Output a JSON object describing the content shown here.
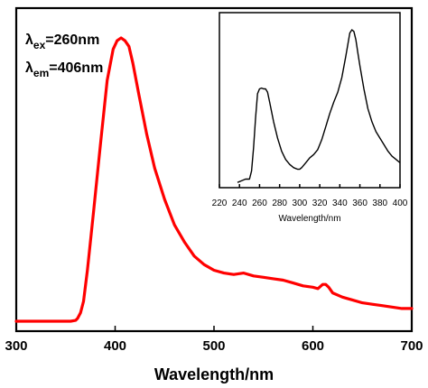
{
  "chart_data": [
    {
      "type": "line",
      "xlabel": "Wavelength/nm",
      "ylabel": "",
      "xlim": [
        300,
        700
      ],
      "xticks": [
        "300",
        "400",
        "500",
        "600",
        "700"
      ],
      "y_ticks_shown": false,
      "line_color": "#ff0000",
      "annotations": [
        {
          "symbol": "λ",
          "sub": "ex",
          "text": "=260nm"
        },
        {
          "symbol": "λ",
          "sub": "em",
          "text": "=406nm"
        }
      ],
      "series": [
        {
          "x": [
            300,
            320,
            340,
            355,
            360,
            362,
            365,
            368,
            372,
            378,
            385,
            392,
            398,
            402,
            406,
            410,
            414,
            418,
            424,
            432,
            440,
            450,
            460,
            470,
            480,
            490,
            500,
            510,
            520,
            530,
            540,
            550,
            560,
            570,
            580,
            590,
            600,
            605,
            610,
            613,
            616,
            620,
            630,
            640,
            650,
            660,
            670,
            680,
            690,
            700
          ],
          "y": [
            0.0,
            0.0,
            0.0,
            0.0,
            0.003,
            0.01,
            0.03,
            0.07,
            0.18,
            0.38,
            0.62,
            0.85,
            0.96,
            0.99,
            1.0,
            0.99,
            0.97,
            0.91,
            0.8,
            0.66,
            0.54,
            0.43,
            0.34,
            0.28,
            0.23,
            0.2,
            0.18,
            0.17,
            0.165,
            0.17,
            0.16,
            0.155,
            0.15,
            0.145,
            0.135,
            0.125,
            0.12,
            0.115,
            0.13,
            0.13,
            0.12,
            0.1,
            0.085,
            0.075,
            0.065,
            0.06,
            0.055,
            0.05,
            0.045,
            0.045
          ]
        }
      ]
    },
    {
      "type": "line",
      "xlabel": "Wavelength/nm",
      "ylabel": "",
      "xlim": [
        220,
        400
      ],
      "xticks": [
        "220",
        "240",
        "260",
        "280",
        "300",
        "320",
        "340",
        "360",
        "380",
        "400"
      ],
      "y_ticks_shown": false,
      "line_color": "#000000",
      "series": [
        {
          "x": [
            238,
            242,
            246,
            250,
            252,
            254,
            256,
            258,
            260,
            262,
            264,
            266,
            268,
            270,
            274,
            278,
            282,
            286,
            290,
            294,
            298,
            300,
            302,
            306,
            310,
            314,
            318,
            322,
            326,
            330,
            334,
            338,
            342,
            346,
            348,
            350,
            352,
            354,
            356,
            358,
            360,
            364,
            368,
            372,
            376,
            380,
            384,
            388,
            392,
            396,
            400
          ],
          "y": [
            0.01,
            0.02,
            0.03,
            0.03,
            0.08,
            0.22,
            0.4,
            0.55,
            0.58,
            0.585,
            0.58,
            0.58,
            0.56,
            0.5,
            0.38,
            0.28,
            0.2,
            0.15,
            0.12,
            0.1,
            0.09,
            0.09,
            0.1,
            0.13,
            0.16,
            0.18,
            0.21,
            0.27,
            0.35,
            0.43,
            0.5,
            0.56,
            0.65,
            0.78,
            0.85,
            0.92,
            0.94,
            0.93,
            0.88,
            0.8,
            0.72,
            0.58,
            0.46,
            0.38,
            0.32,
            0.28,
            0.24,
            0.2,
            0.17,
            0.15,
            0.13
          ]
        }
      ]
    }
  ]
}
